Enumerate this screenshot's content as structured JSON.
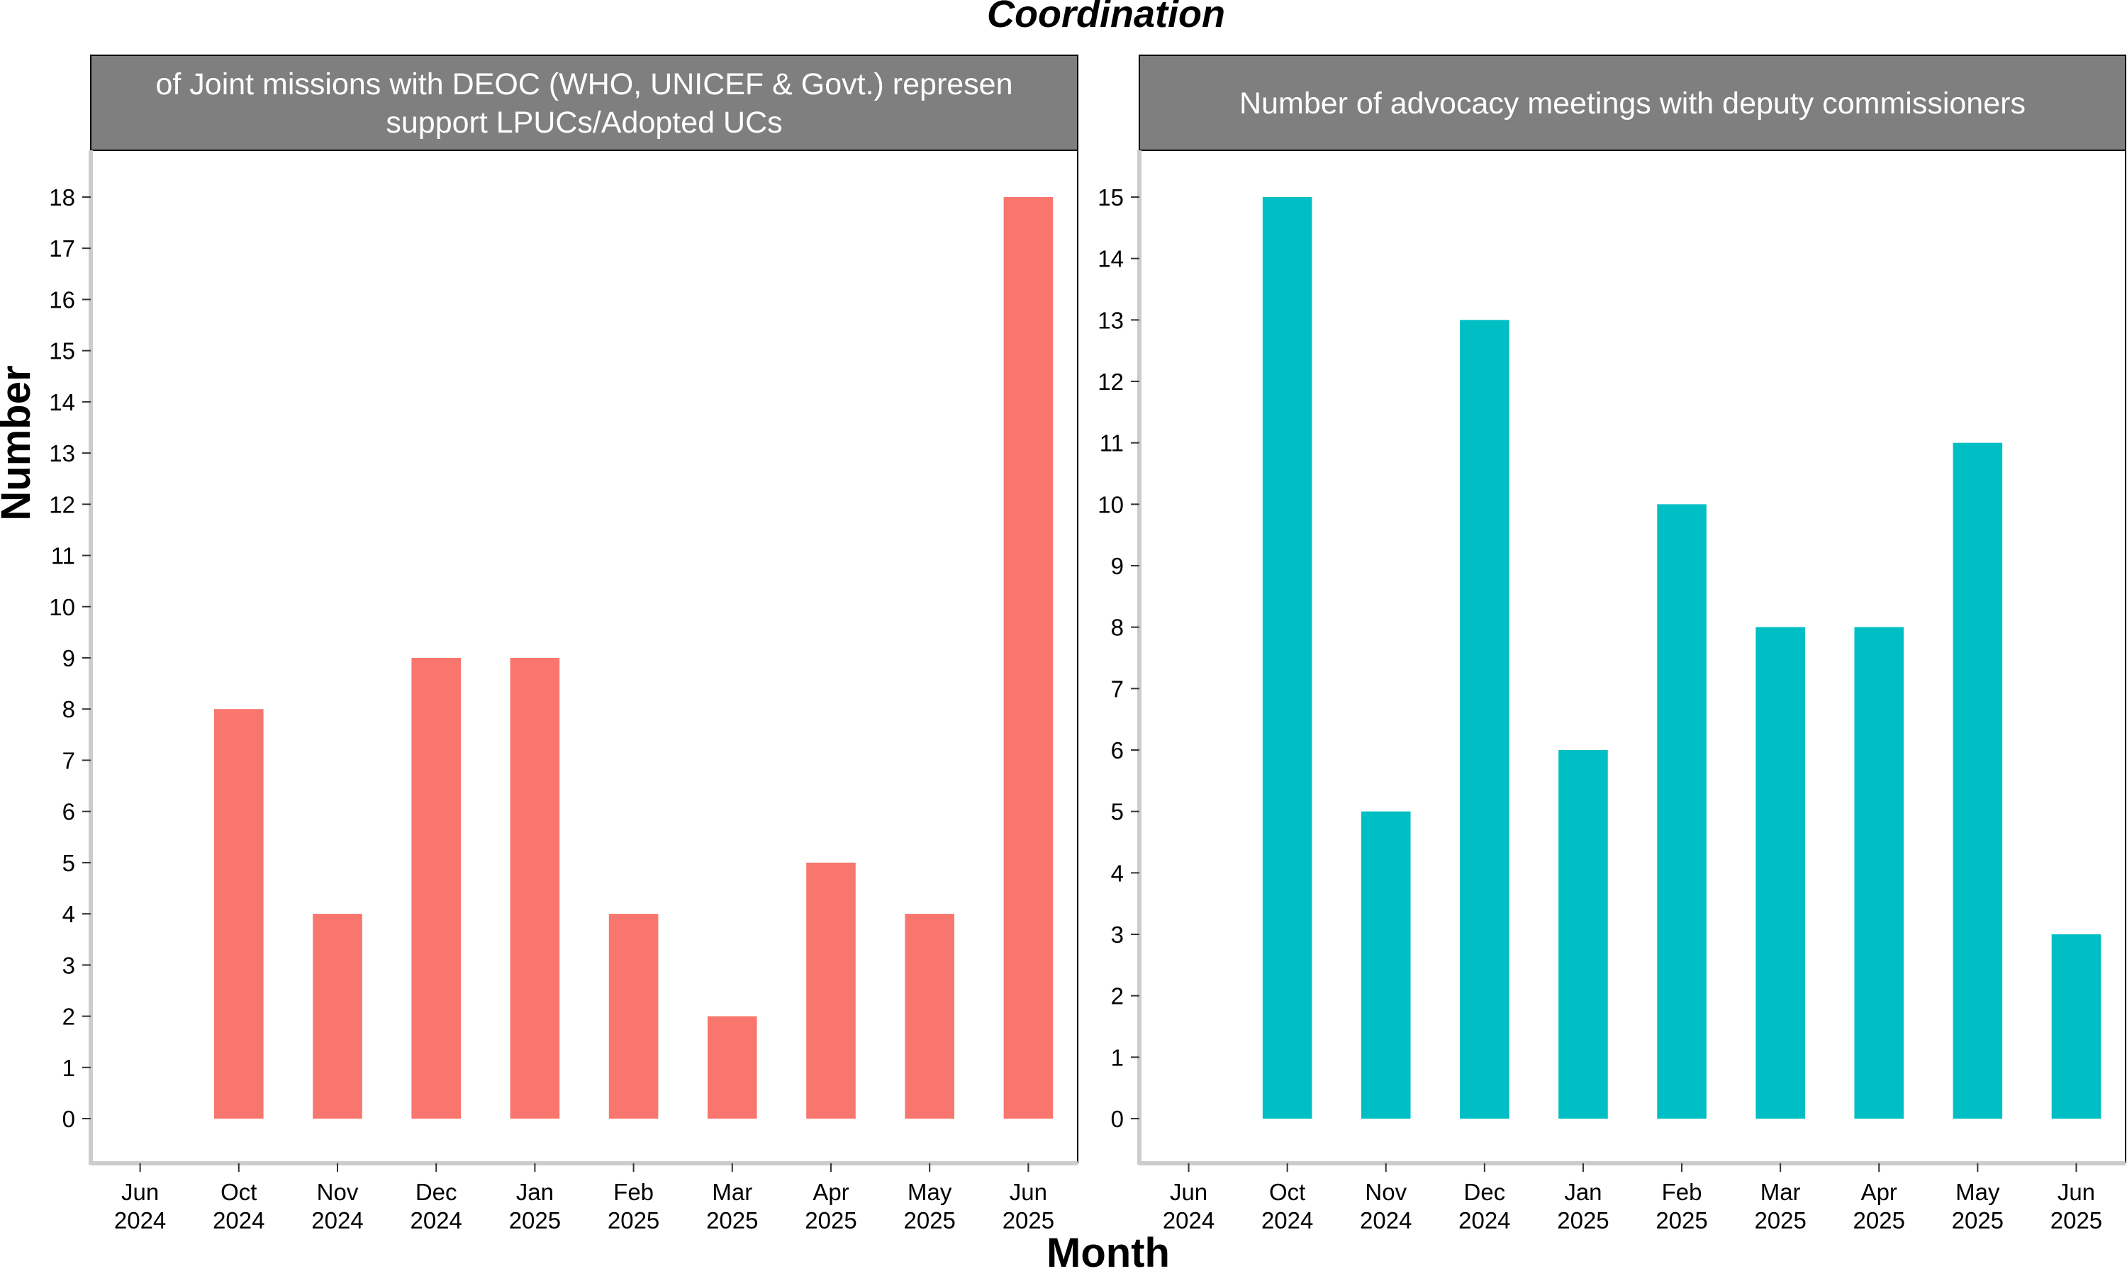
{
  "chart_data": {
    "title": "Coordination",
    "xlabel": "Month",
    "ylabel": "Number",
    "categories": [
      "Jun\n2024",
      "Oct\n2024",
      "Nov\n2024",
      "Dec\n2024",
      "Jan\n2025",
      "Feb\n2025",
      "Mar\n2025",
      "Apr\n2025",
      "May\n2025",
      "Jun\n2025"
    ],
    "panels": [
      {
        "type": "bar",
        "strip_lines": [
          "of Joint missions with DEOC (WHO, UNICEF & Govt.) represen",
          "support LPUCs/Adopted UCs"
        ],
        "color": "#F8766D",
        "values": [
          null,
          8,
          4,
          9,
          9,
          4,
          2,
          5,
          4,
          18
        ],
        "ylim": [
          0,
          18
        ],
        "yticks": [
          0,
          1,
          2,
          3,
          4,
          5,
          6,
          7,
          8,
          9,
          10,
          11,
          12,
          13,
          14,
          15,
          16,
          17,
          18
        ]
      },
      {
        "type": "bar",
        "strip_lines": [
          "Number of advocacy meetings with deputy commissioners"
        ],
        "color": "#00BFC4",
        "values": [
          null,
          15,
          5,
          13,
          6,
          10,
          8,
          8,
          11,
          3
        ],
        "ylim": [
          0,
          15
        ],
        "yticks": [
          0,
          1,
          2,
          3,
          4,
          5,
          6,
          7,
          8,
          9,
          10,
          11,
          12,
          13,
          14,
          15
        ]
      }
    ]
  }
}
